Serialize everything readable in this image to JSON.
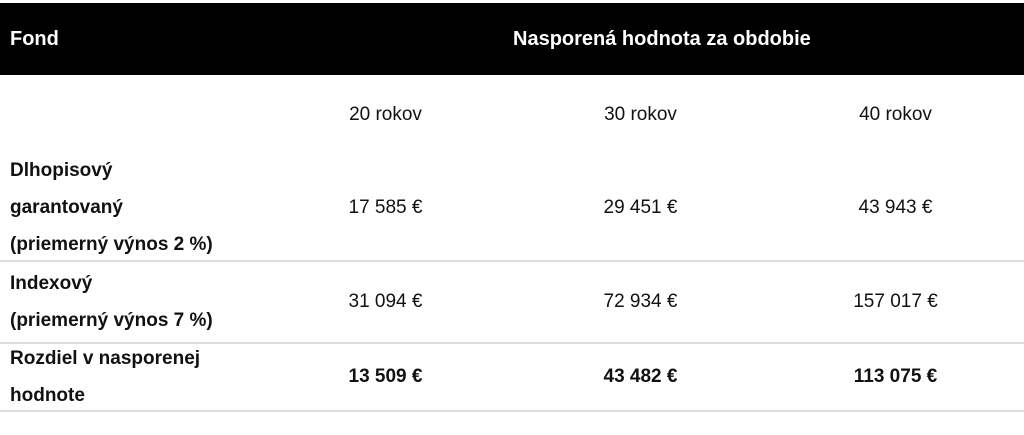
{
  "table": {
    "header": {
      "fond": "Fond",
      "period": "Nasporená hodnota za obdobie"
    },
    "columns": [
      "20 rokov",
      "30 rokov",
      "40 rokov"
    ],
    "rows": [
      {
        "label": [
          "Dlhopisový",
          "garantovaný",
          "(priemerný výnos 2 %)"
        ],
        "cells": [
          "17 585 €",
          "29 451 €",
          "43 943 €"
        ]
      },
      {
        "label": [
          "Indexový",
          "(priemerný výnos 7 %)"
        ],
        "cells": [
          "31 094 €",
          "72 934 €",
          "157 017 €"
        ]
      },
      {
        "label": [
          "Rozdiel v nasporenej",
          "hodnote"
        ],
        "cells": [
          "13 509 €",
          "43 482 €",
          "113 075 €"
        ],
        "bold": true
      }
    ]
  }
}
